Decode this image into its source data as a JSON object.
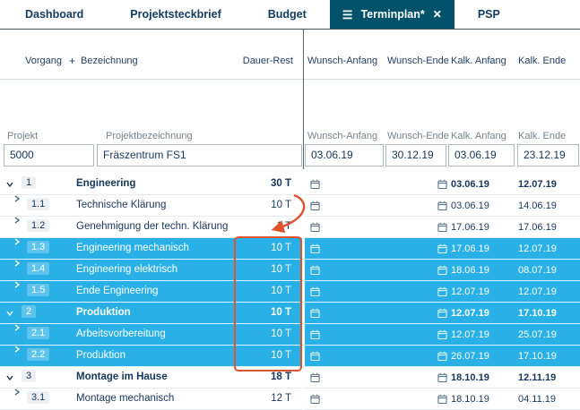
{
  "tabs": [
    {
      "label": "Dashboard",
      "active": false
    },
    {
      "label": "Projektsteckbrief",
      "active": false
    },
    {
      "label": "Budget",
      "active": false
    },
    {
      "label": "Terminplan*",
      "active": true
    },
    {
      "label": "PSP",
      "active": false
    }
  ],
  "grid_header": {
    "vorgang": "Vorgang",
    "add": "+",
    "bezeichnung": "Bezeichnung",
    "dauer_rest": "Dauer-Rest",
    "wunsch_anfang": "Wunsch-Anfang",
    "wunsch_ende": "Wunsch-Ende",
    "kalk_anfang": "Kalk. Anfang",
    "kalk_ende": "Kalk. Ende"
  },
  "project_header": {
    "projekt": "Projekt",
    "projektbezeichnung": "Projektbezeichnung",
    "wunsch_anfang": "Wunsch-Anfang",
    "wunsch_ende": "Wunsch-Ende",
    "kalk_anfang": "Kalk. Anfang",
    "kalk_ende": "Kalk. Ende"
  },
  "project": {
    "nummer": "5000",
    "bezeichnung": "Fräszentrum FS1",
    "wunsch_anfang": "03.06.19",
    "wunsch_ende": "30.12.19",
    "kalk_anfang": "03.06.19",
    "kalk_ende": "23.12.19"
  },
  "rows": [
    {
      "id": "1",
      "name": "Engineering",
      "dauer": "30 T",
      "kalk_anfang": "03.06.19",
      "kalk_ende": "12.07.19",
      "level": 0,
      "expanded": true,
      "bold": true,
      "highlight": false
    },
    {
      "id": "1.1",
      "name": "Technische Klärung",
      "dauer": "10 T",
      "kalk_anfang": "03.06.19",
      "kalk_ende": "14.06.19",
      "level": 1,
      "expanded": false,
      "bold": false,
      "highlight": false
    },
    {
      "id": "1.2",
      "name": "Genehmigung der techn. Klärung",
      "dauer": "1 T",
      "kalk_anfang": "17.06.19",
      "kalk_ende": "17.06.19",
      "level": 1,
      "expanded": false,
      "bold": false,
      "highlight": false
    },
    {
      "id": "1.3",
      "name": "Engineering mechanisch",
      "dauer": "10 T",
      "kalk_anfang": "17.06.19",
      "kalk_ende": "12.07.19",
      "level": 1,
      "expanded": false,
      "bold": false,
      "highlight": true
    },
    {
      "id": "1.4",
      "name": "Engineering elektrisch",
      "dauer": "10 T",
      "kalk_anfang": "18.06.19",
      "kalk_ende": "08.07.19",
      "level": 1,
      "expanded": false,
      "bold": false,
      "highlight": true
    },
    {
      "id": "1.5",
      "name": "Ende Engineering",
      "dauer": "10 T",
      "kalk_anfang": "12.07.19",
      "kalk_ende": "12.07.19",
      "level": 1,
      "expanded": false,
      "bold": false,
      "highlight": true
    },
    {
      "id": "2",
      "name": "Produktion",
      "dauer": "10 T",
      "kalk_anfang": "12.07.19",
      "kalk_ende": "17.10.19",
      "level": 0,
      "expanded": true,
      "bold": true,
      "highlight": true
    },
    {
      "id": "2.1",
      "name": "Arbeitsvorbereitung",
      "dauer": "10 T",
      "kalk_anfang": "12.07.19",
      "kalk_ende": "25.07.19",
      "level": 1,
      "expanded": false,
      "bold": false,
      "highlight": true
    },
    {
      "id": "2.2",
      "name": "Produktion",
      "dauer": "10 T",
      "kalk_anfang": "26.07.19",
      "kalk_ende": "17.10.19",
      "level": 1,
      "expanded": false,
      "bold": false,
      "highlight": true
    },
    {
      "id": "3",
      "name": "Montage im Hause",
      "dauer": "18 T",
      "kalk_anfang": "18.10.19",
      "kalk_ende": "12.11.19",
      "level": 0,
      "expanded": true,
      "bold": true,
      "highlight": false
    },
    {
      "id": "3.1",
      "name": "Montage mechanisch",
      "dauer": "12 T",
      "kalk_anfang": "18.10.19",
      "kalk_ende": "04.11.19",
      "level": 1,
      "expanded": false,
      "bold": false,
      "highlight": false
    }
  ],
  "colors": {
    "highlight_row": "#29b0e6",
    "active_tab": "#00526b",
    "annotation": "#e0512e",
    "text_dark": "#16365a"
  }
}
